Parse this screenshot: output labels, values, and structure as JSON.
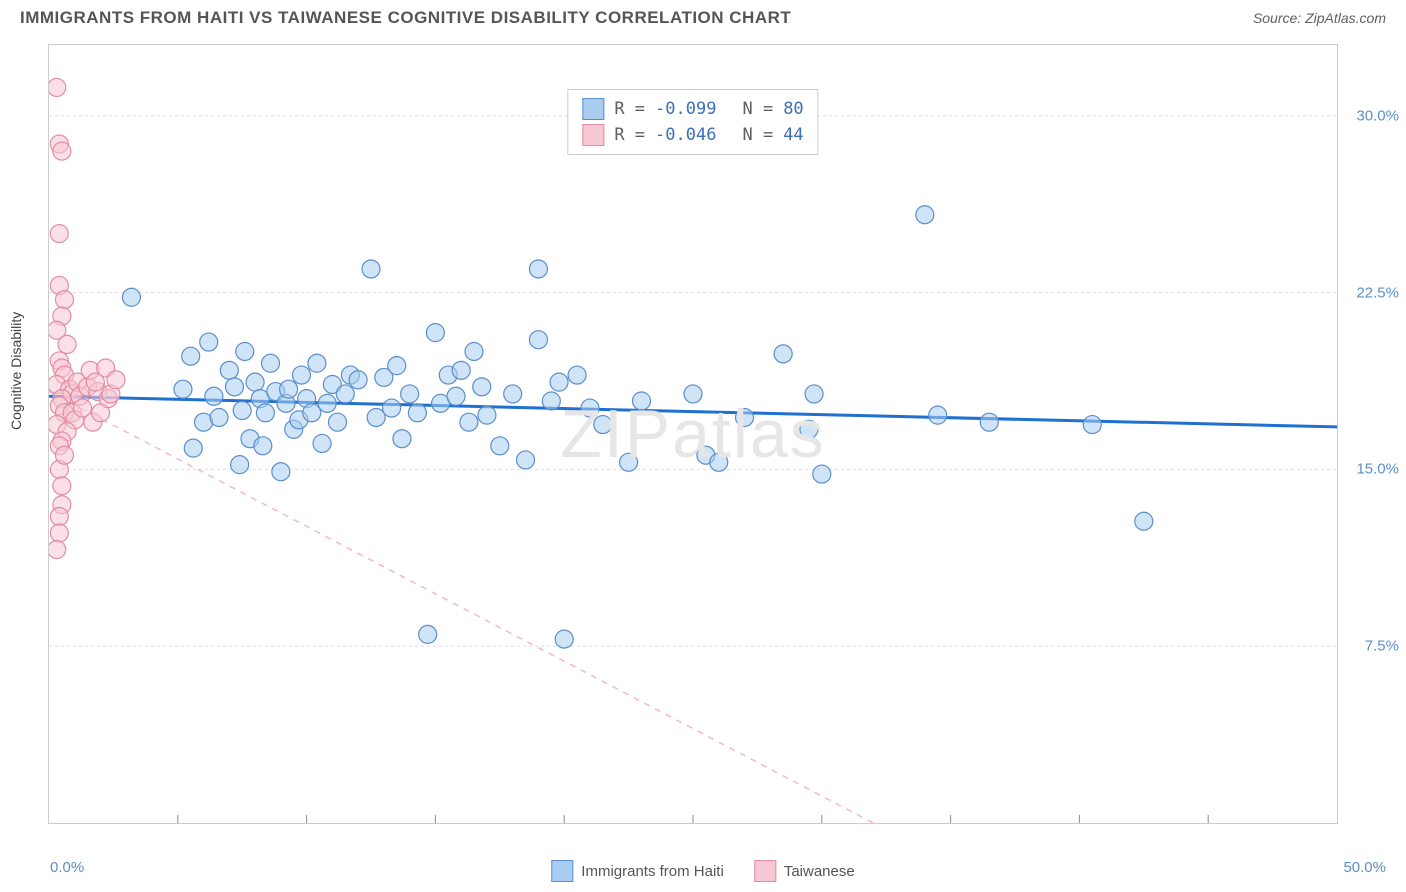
{
  "title": "IMMIGRANTS FROM HAITI VS TAIWANESE COGNITIVE DISABILITY CORRELATION CHART",
  "source": "Source: ZipAtlas.com",
  "ylabel": "Cognitive Disability",
  "watermark": "ZIPatlas",
  "chart": {
    "type": "scatter",
    "xlim": [
      0,
      50
    ],
    "ylim": [
      0,
      33
    ],
    "xtick_left": "0.0%",
    "xtick_right": "50.0%",
    "yticks": [
      {
        "v": 7.5,
        "label": "7.5%"
      },
      {
        "v": 15.0,
        "label": "15.0%"
      },
      {
        "v": 22.5,
        "label": "22.5%"
      },
      {
        "v": 30.0,
        "label": "30.0%"
      }
    ],
    "xtick_minor": [
      5,
      10,
      15,
      20,
      25,
      30,
      35,
      40,
      45
    ],
    "grid_color": "#dddddd",
    "background_color": "#ffffff",
    "marker_radius": 9,
    "series": [
      {
        "name": "Immigrants from Haiti",
        "fill": "#a9cdf0",
        "stroke": "#5b8ecb",
        "fill_opacity": 0.55,
        "points": [
          [
            3.2,
            22.3
          ],
          [
            5.2,
            18.4
          ],
          [
            5.5,
            19.8
          ],
          [
            5.6,
            15.9
          ],
          [
            6.0,
            17.0
          ],
          [
            6.2,
            20.4
          ],
          [
            6.4,
            18.1
          ],
          [
            6.6,
            17.2
          ],
          [
            7.0,
            19.2
          ],
          [
            7.2,
            18.5
          ],
          [
            7.4,
            15.2
          ],
          [
            7.5,
            17.5
          ],
          [
            7.6,
            20.0
          ],
          [
            7.8,
            16.3
          ],
          [
            8.0,
            18.7
          ],
          [
            8.2,
            18.0
          ],
          [
            8.3,
            16.0
          ],
          [
            8.4,
            17.4
          ],
          [
            8.6,
            19.5
          ],
          [
            8.8,
            18.3
          ],
          [
            9.0,
            14.9
          ],
          [
            9.2,
            17.8
          ],
          [
            9.3,
            18.4
          ],
          [
            9.5,
            16.7
          ],
          [
            9.7,
            17.1
          ],
          [
            9.8,
            19.0
          ],
          [
            10.0,
            18.0
          ],
          [
            10.2,
            17.4
          ],
          [
            10.4,
            19.5
          ],
          [
            10.6,
            16.1
          ],
          [
            10.8,
            17.8
          ],
          [
            11.0,
            18.6
          ],
          [
            11.2,
            17.0
          ],
          [
            11.5,
            18.2
          ],
          [
            11.7,
            19.0
          ],
          [
            12.0,
            18.8
          ],
          [
            12.5,
            23.5
          ],
          [
            12.7,
            17.2
          ],
          [
            13.0,
            18.9
          ],
          [
            13.3,
            17.6
          ],
          [
            13.5,
            19.4
          ],
          [
            13.7,
            16.3
          ],
          [
            14.0,
            18.2
          ],
          [
            14.3,
            17.4
          ],
          [
            14.7,
            8.0
          ],
          [
            15.0,
            20.8
          ],
          [
            15.2,
            17.8
          ],
          [
            15.5,
            19.0
          ],
          [
            15.8,
            18.1
          ],
          [
            16.0,
            19.2
          ],
          [
            16.3,
            17.0
          ],
          [
            16.5,
            20.0
          ],
          [
            16.8,
            18.5
          ],
          [
            17.0,
            17.3
          ],
          [
            17.5,
            16.0
          ],
          [
            18.0,
            18.2
          ],
          [
            18.5,
            15.4
          ],
          [
            19.0,
            23.5
          ],
          [
            19.0,
            20.5
          ],
          [
            19.5,
            17.9
          ],
          [
            19.8,
            18.7
          ],
          [
            20.0,
            7.8
          ],
          [
            20.5,
            19.0
          ],
          [
            21.0,
            17.6
          ],
          [
            21.5,
            16.9
          ],
          [
            22.5,
            15.3
          ],
          [
            23.0,
            17.9
          ],
          [
            25.0,
            18.2
          ],
          [
            25.5,
            15.6
          ],
          [
            26.0,
            15.3
          ],
          [
            27.0,
            17.2
          ],
          [
            28.5,
            19.9
          ],
          [
            29.5,
            16.7
          ],
          [
            29.7,
            18.2
          ],
          [
            34.0,
            25.8
          ],
          [
            34.5,
            17.3
          ],
          [
            36.5,
            17.0
          ],
          [
            40.5,
            16.9
          ],
          [
            42.5,
            12.8
          ],
          [
            30.0,
            14.8
          ]
        ],
        "trend": {
          "x1": 0,
          "y1": 18.1,
          "x2": 50,
          "y2": 16.8,
          "stroke": "#1f70d1",
          "width": 3,
          "dash": "none"
        }
      },
      {
        "name": "Taiwanese",
        "fill": "#f7c7d4",
        "stroke": "#e28ca2",
        "fill_opacity": 0.55,
        "points": [
          [
            0.3,
            31.2
          ],
          [
            0.4,
            28.8
          ],
          [
            0.5,
            28.5
          ],
          [
            0.4,
            25.0
          ],
          [
            0.4,
            22.8
          ],
          [
            0.6,
            22.2
          ],
          [
            0.5,
            21.5
          ],
          [
            0.3,
            20.9
          ],
          [
            0.7,
            20.3
          ],
          [
            0.4,
            19.6
          ],
          [
            0.5,
            19.3
          ],
          [
            0.6,
            19.0
          ],
          [
            0.3,
            18.6
          ],
          [
            0.8,
            18.4
          ],
          [
            0.9,
            18.2
          ],
          [
            0.5,
            18.0
          ],
          [
            0.4,
            17.7
          ],
          [
            0.6,
            17.4
          ],
          [
            0.9,
            17.4
          ],
          [
            1.0,
            17.1
          ],
          [
            0.3,
            16.9
          ],
          [
            0.7,
            16.6
          ],
          [
            0.5,
            16.2
          ],
          [
            0.4,
            16.0
          ],
          [
            1.1,
            18.7
          ],
          [
            1.2,
            18.1
          ],
          [
            1.3,
            17.6
          ],
          [
            1.5,
            18.5
          ],
          [
            1.6,
            19.2
          ],
          [
            1.7,
            17.0
          ],
          [
            1.9,
            18.3
          ],
          [
            2.0,
            17.4
          ],
          [
            2.2,
            19.3
          ],
          [
            2.3,
            18.0
          ],
          [
            0.4,
            15.0
          ],
          [
            0.5,
            14.3
          ],
          [
            0.5,
            13.5
          ],
          [
            0.4,
            13.0
          ],
          [
            0.4,
            12.3
          ],
          [
            0.3,
            11.6
          ],
          [
            0.6,
            15.6
          ],
          [
            1.8,
            18.7
          ],
          [
            2.4,
            18.2
          ],
          [
            2.6,
            18.8
          ]
        ],
        "trend": {
          "x1": 0,
          "y1": 18.3,
          "x2": 32,
          "y2": 0,
          "stroke": "#f3b9c8",
          "width": 1.5,
          "dash": "6,6"
        }
      }
    ],
    "stats": [
      {
        "swatch_fill": "#a9cdf0",
        "swatch_stroke": "#5b8ecb",
        "R": "-0.099",
        "N": "80",
        "val_color": "#3d6fb4"
      },
      {
        "swatch_fill": "#f7c7d4",
        "swatch_stroke": "#e28ca2",
        "R": "-0.046",
        "N": "44",
        "val_color": "#3d6fb4"
      }
    ],
    "legend": [
      {
        "swatch_fill": "#a9cdf0",
        "swatch_stroke": "#5b8ecb",
        "label": "Immigrants from Haiti"
      },
      {
        "swatch_fill": "#f7c7d4",
        "swatch_stroke": "#e28ca2",
        "label": "Taiwanese"
      }
    ]
  }
}
